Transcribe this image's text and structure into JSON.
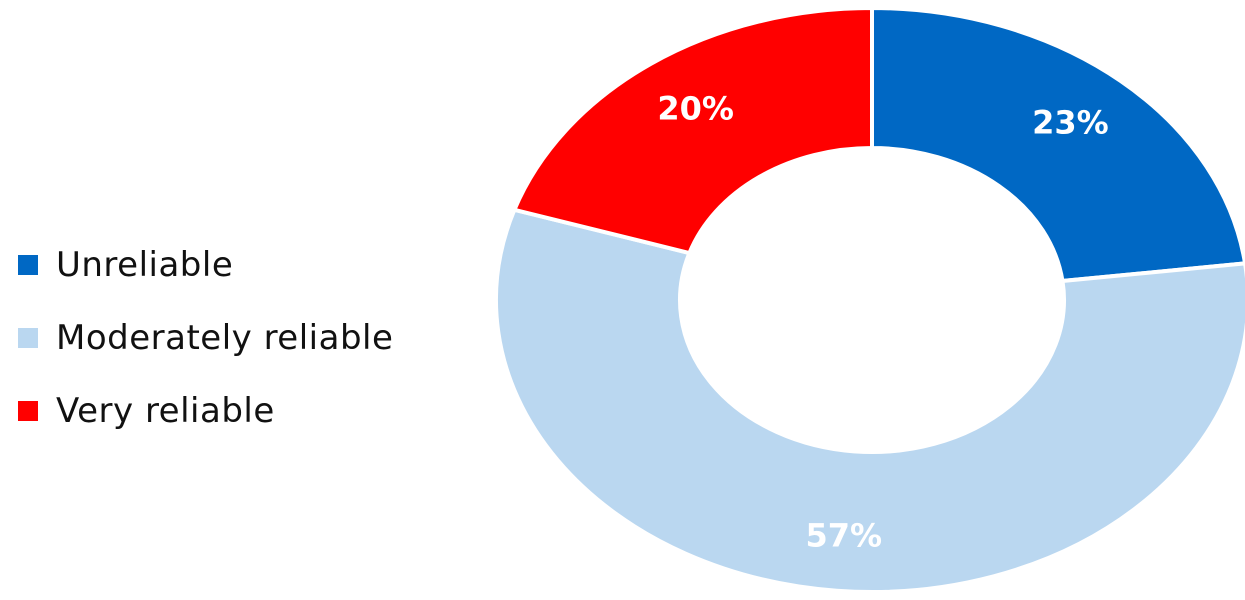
{
  "chart_data": {
    "type": "pie",
    "variant": "donut",
    "title": "",
    "categories": [
      "Unreliable",
      "Moderately reliable",
      "Very reliable"
    ],
    "values": [
      23,
      57,
      20
    ],
    "data_labels": [
      "23%",
      "57%",
      "20%"
    ],
    "colors": [
      "#0068C4",
      "#BAD7F0",
      "#FF0000"
    ],
    "legend": {
      "position": "left",
      "entries": [
        "Unreliable",
        "Moderately reliable",
        "Very reliable"
      ]
    },
    "start_angle_deg": 0,
    "direction": "clockwise"
  }
}
